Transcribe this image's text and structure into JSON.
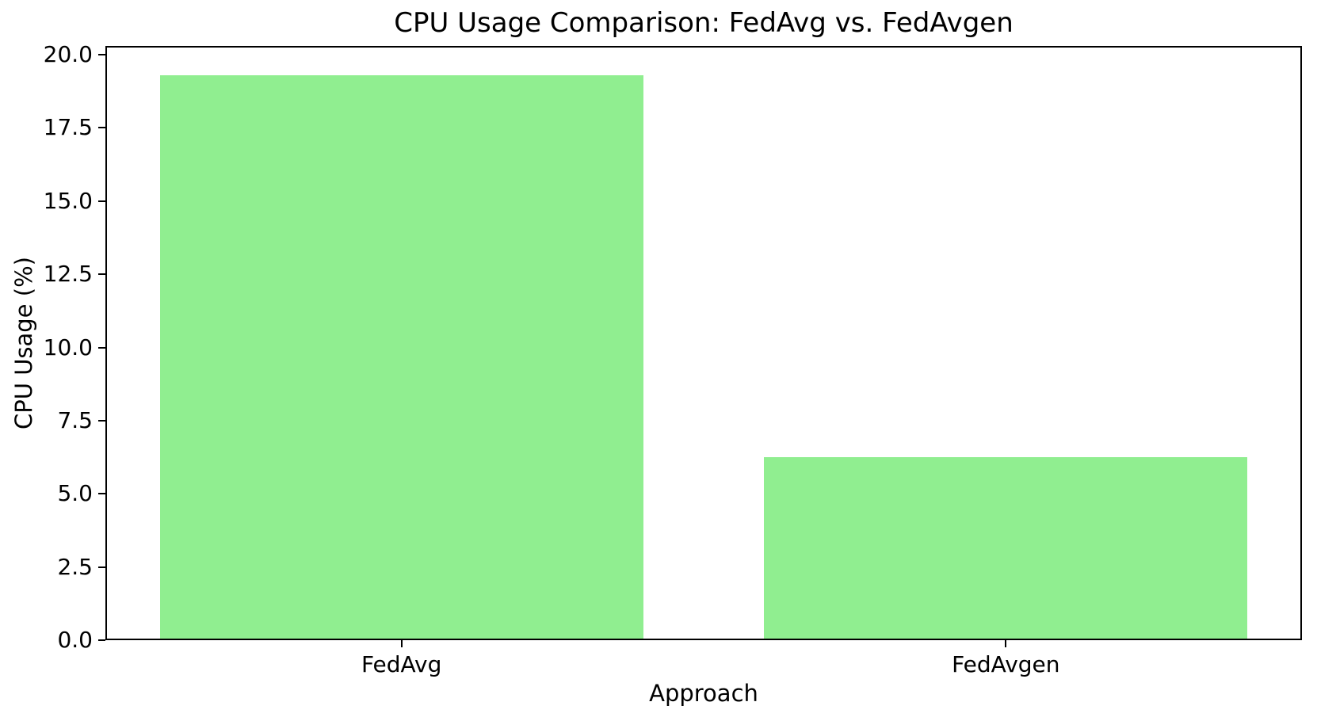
{
  "chart_data": {
    "type": "bar",
    "title": "CPU Usage Comparison: FedAvg vs. FedAvgen",
    "xlabel": "Approach",
    "ylabel": "CPU Usage (%)",
    "categories": [
      "FedAvg",
      "FedAvgen"
    ],
    "x": [
      0,
      1
    ],
    "values": [
      19.3,
      6.25
    ],
    "bar_color": "#90EE90",
    "bar_width": 0.8,
    "xlim": [
      -0.49,
      1.49
    ],
    "ylim": [
      0,
      20.3
    ],
    "yticks": [
      0,
      2.5,
      5,
      7.5,
      10,
      12.5,
      15,
      17.5,
      20
    ],
    "ytick_labels": [
      "0.0",
      "2.5",
      "5.0",
      "7.5",
      "10.0",
      "12.5",
      "15.0",
      "17.5",
      "20.0"
    ],
    "grid": false,
    "legend_position": "none",
    "axis_color": "#000000",
    "text_color": "#000000",
    "background_color": "#ffffff"
  }
}
